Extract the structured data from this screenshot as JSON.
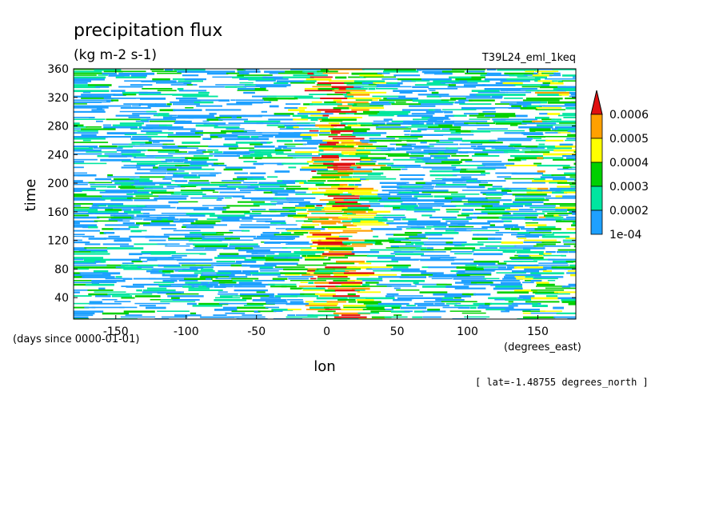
{
  "figure": {
    "title": "precipitation flux",
    "units": "(kg m-2 s-1)",
    "experiment": "T39L24_eml_1keq",
    "time_units": "(days since 0000-01-01)",
    "lon_units": "(degrees_east)",
    "slice_note": "[ lat=-1.48755 degrees_north ]"
  },
  "chart_data": {
    "type": "heatmap",
    "xlabel": "lon",
    "ylabel": "time",
    "xlim": [
      -180,
      177
    ],
    "ylim": [
      10,
      360
    ],
    "x_ticks": [
      -150,
      -100,
      -50,
      0,
      50,
      100,
      150
    ],
    "x_tick_labels": [
      "-150",
      "-100",
      "-50",
      "0",
      "50",
      "100",
      "150"
    ],
    "y_ticks": [
      40,
      80,
      120,
      160,
      200,
      240,
      280,
      320,
      360
    ],
    "y_tick_labels": [
      "40",
      "80",
      "120",
      "160",
      "200",
      "240",
      "280",
      "320",
      "360"
    ],
    "colorbar": {
      "levels": [
        0.0001,
        0.0002,
        0.0003,
        0.0004,
        0.0005,
        0.0006
      ],
      "labels": [
        "1e-04",
        "0.0002",
        "0.0003",
        "0.0004",
        "0.0005",
        "0.0006"
      ],
      "colors": [
        "#1ea0ff",
        "#00e6a0",
        "#00d000",
        "#ffff00",
        "#ffa000",
        "#e01010"
      ],
      "extend": "max"
    },
    "description_values": {
      "note": "Hovmoller diagram of precipitation flux vs longitude and time along the equator; banded zonal streaks with an enhanced maximum near lon 0 and a weaker one near lon 150"
    }
  }
}
